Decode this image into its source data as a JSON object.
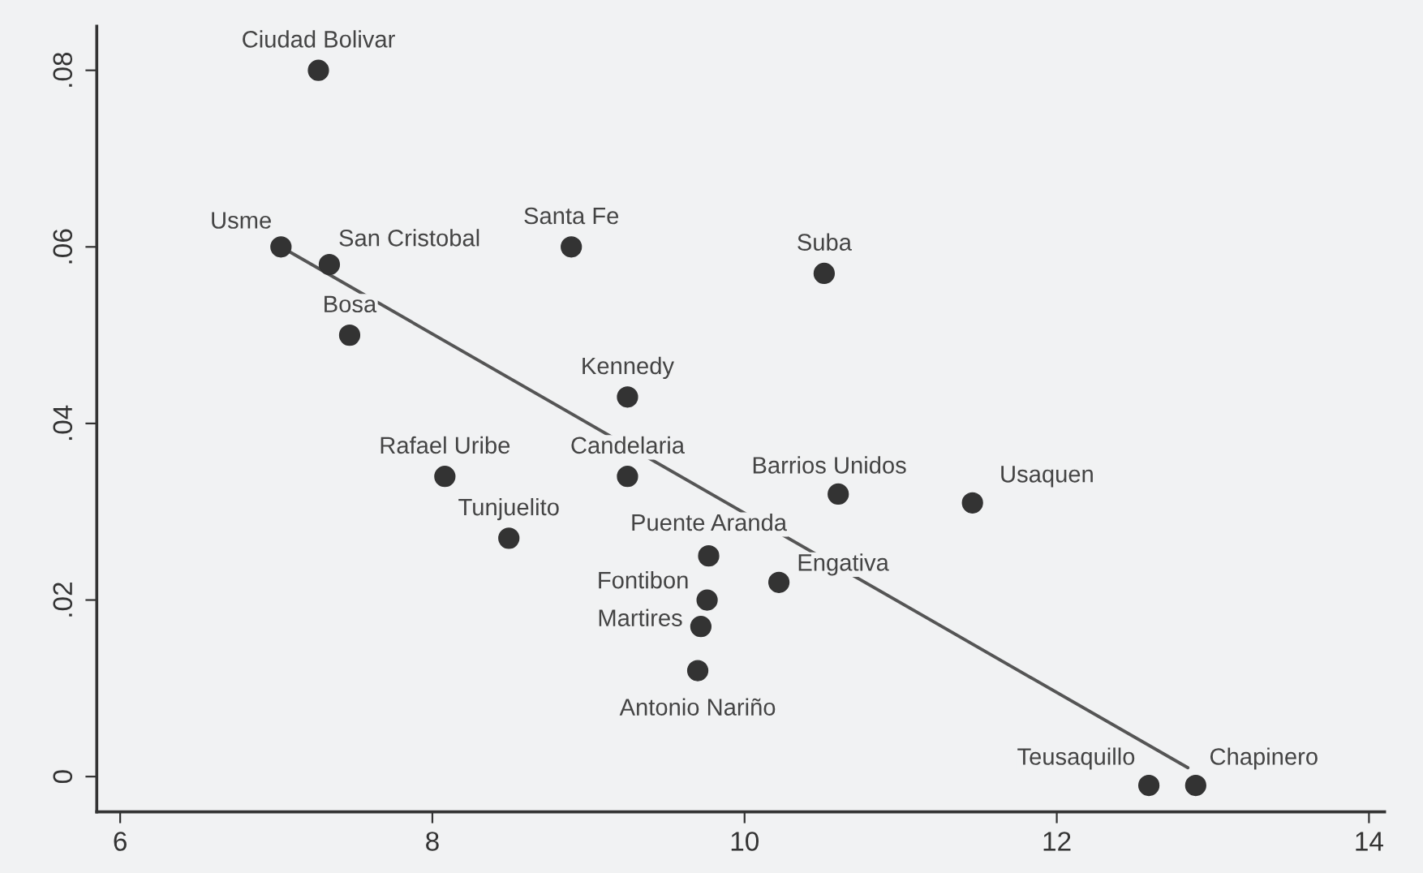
{
  "chart_data": {
    "type": "scatter",
    "xlim": [
      5.85,
      14.1
    ],
    "ylim": [
      -0.004,
      0.085
    ],
    "xticks": [
      6,
      8,
      10,
      12,
      14
    ],
    "yticks": [
      {
        "value": 0,
        "label": "0"
      },
      {
        "value": 0.02,
        "label": ".02"
      },
      {
        "value": 0.04,
        "label": ".04"
      },
      {
        "value": 0.06,
        "label": ".06"
      },
      {
        "value": 0.08,
        "label": ".08"
      }
    ],
    "grid": false,
    "legend": false,
    "marker": "circle",
    "series": [
      {
        "color": "#333333",
        "x": [
          7.27,
          7.03,
          7.34,
          8.89,
          10.51,
          7.47,
          9.25,
          8.08,
          9.25,
          10.6,
          11.46,
          8.49,
          9.77,
          10.22,
          9.76,
          9.72,
          9.7,
          12.59,
          12.89
        ],
        "values": [
          0.08,
          0.06,
          0.058,
          0.06,
          0.057,
          0.05,
          0.043,
          0.034,
          0.034,
          0.032,
          0.031,
          0.027,
          0.025,
          0.022,
          0.02,
          0.017,
          0.012,
          -0.001,
          -0.001
        ]
      },
      {
        "type": "line",
        "color": "#555555",
        "line_style": "solid",
        "marker": "none",
        "x": [
          7.03,
          12.84
        ],
        "values": [
          0.06,
          0.001
        ]
      }
    ],
    "annotations": [
      {
        "text": "Ciudad Bolivar",
        "x": 7.27,
        "y": 0.08
      },
      {
        "text": "Usme",
        "x": 7.03,
        "y": 0.06
      },
      {
        "text": "San Cristobal",
        "x": 7.34,
        "y": 0.058
      },
      {
        "text": "Santa Fe",
        "x": 8.89,
        "y": 0.06
      },
      {
        "text": "Suba",
        "x": 10.51,
        "y": 0.057
      },
      {
        "text": "Bosa",
        "x": 7.47,
        "y": 0.05
      },
      {
        "text": "Kennedy",
        "x": 9.25,
        "y": 0.043
      },
      {
        "text": "Rafael Uribe",
        "x": 8.08,
        "y": 0.034
      },
      {
        "text": "Candelaria",
        "x": 9.25,
        "y": 0.034
      },
      {
        "text": "Barrios Unidos",
        "x": 10.6,
        "y": 0.032
      },
      {
        "text": "Usaquen",
        "x": 11.46,
        "y": 0.031
      },
      {
        "text": "Tunjuelito",
        "x": 8.49,
        "y": 0.027
      },
      {
        "text": "Puente Aranda",
        "x": 9.77,
        "y": 0.025
      },
      {
        "text": "Engativa",
        "x": 10.22,
        "y": 0.022
      },
      {
        "text": "Fontibon",
        "x": 9.76,
        "y": 0.02
      },
      {
        "text": "Martires",
        "x": 9.72,
        "y": 0.017
      },
      {
        "text": "Antonio Nariño",
        "x": 9.7,
        "y": 0.012
      },
      {
        "text": "Teusaquillo",
        "x": 12.59,
        "y": -0.001
      },
      {
        "text": "Chapinero",
        "x": 12.89,
        "y": -0.001
      }
    ]
  }
}
